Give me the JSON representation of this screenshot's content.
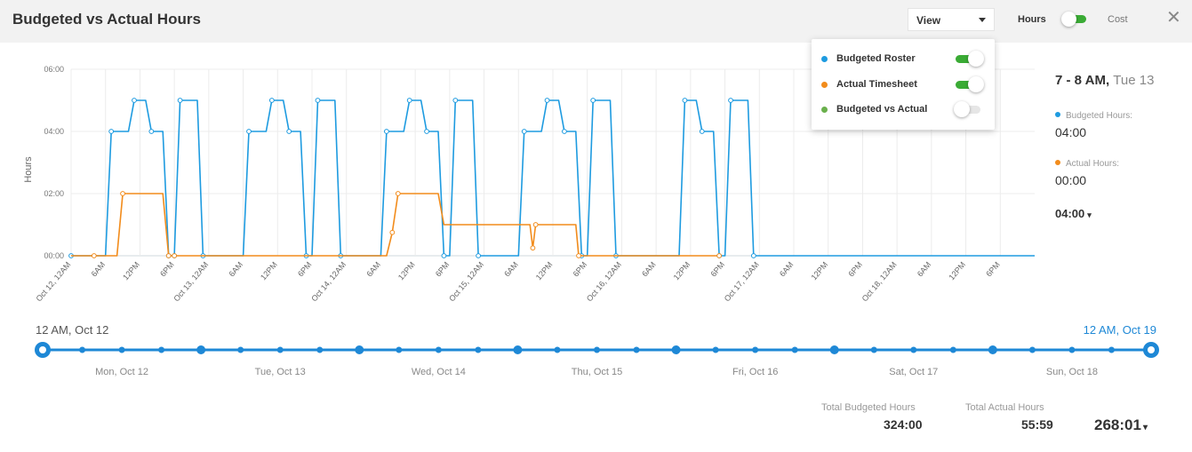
{
  "header": {
    "title": "Budgeted vs Actual Hours",
    "view_label": "View",
    "hours_label": "Hours",
    "cost_label": "Cost",
    "close_glyph": "✕"
  },
  "legend_popup": {
    "items": [
      {
        "label": "Budgeted Roster",
        "color": "#1e9be0",
        "enabled": true
      },
      {
        "label": "Actual Timesheet",
        "color": "#f28c1c",
        "enabled": true
      },
      {
        "label": "Budgeted vs Actual",
        "color": "#6ab04c",
        "enabled": false
      }
    ]
  },
  "side_panel": {
    "range": "7 - 8 AM,",
    "day": "Tue 13",
    "budgeted_label": "Budgeted Hours:",
    "budgeted_value": "04:00",
    "actual_label": "Actual Hours:",
    "actual_value": "00:00",
    "selected_value": "04:00",
    "caret": "▾"
  },
  "timeline": {
    "start_label": "12 AM, Oct 12",
    "end_label": "12 AM, Oct 19",
    "days": [
      "Mon, Oct 12",
      "Tue, Oct 13",
      "Wed, Oct 14",
      "Thu, Oct 15",
      "Fri, Oct 16",
      "Sat, Oct 17",
      "Sun, Oct 18"
    ],
    "color": "#1e88d6"
  },
  "totals": {
    "budgeted_label": "Total Budgeted Hours",
    "budgeted_value": "324:00",
    "actual_label": "Total Actual Hours",
    "actual_value": "55:59",
    "difference": "268:01",
    "caret": "▾"
  },
  "chart_data": {
    "type": "line",
    "ylabel": "Hours",
    "y_ticks": [
      "00:00",
      "02:00",
      "04:00",
      "06:00"
    ],
    "ylim": [
      0,
      6
    ],
    "x_unit": "hours since Oct 12, 12AM",
    "xlim": [
      0,
      168
    ],
    "x_tick_labels": [
      "Oct 12, 12AM",
      "6AM",
      "12PM",
      "6PM",
      "Oct 13, 12AM",
      "6AM",
      "12PM",
      "6PM",
      "Oct 14, 12AM",
      "6AM",
      "12PM",
      "6PM",
      "Oct 15, 12AM",
      "6AM",
      "12PM",
      "6PM",
      "Oct 16, 12AM",
      "6AM",
      "12PM",
      "6PM",
      "Oct 17, 12AM",
      "6AM",
      "12PM",
      "6PM",
      "Oct 18, 12AM",
      "6AM",
      "12PM",
      "6PM"
    ],
    "grid": true,
    "series": [
      {
        "name": "Budgeted Roster",
        "color": "#1e9be0",
        "points": [
          [
            0,
            0
          ],
          [
            6,
            0
          ],
          [
            7,
            4
          ],
          [
            10,
            4
          ],
          [
            11,
            5
          ],
          [
            13,
            5
          ],
          [
            14,
            4
          ],
          [
            16,
            4
          ],
          [
            17,
            0
          ],
          [
            18,
            0
          ],
          [
            19,
            5
          ],
          [
            22,
            5
          ],
          [
            23,
            0
          ],
          [
            30,
            0
          ],
          [
            31,
            4
          ],
          [
            34,
            4
          ],
          [
            35,
            5
          ],
          [
            37,
            5
          ],
          [
            38,
            4
          ],
          [
            40,
            4
          ],
          [
            41,
            0
          ],
          [
            42,
            0
          ],
          [
            43,
            5
          ],
          [
            46,
            5
          ],
          [
            47,
            0
          ],
          [
            54,
            0
          ],
          [
            55,
            4
          ],
          [
            58,
            4
          ],
          [
            59,
            5
          ],
          [
            61,
            5
          ],
          [
            62,
            4
          ],
          [
            64,
            4
          ],
          [
            65,
            0
          ],
          [
            66,
            0
          ],
          [
            67,
            5
          ],
          [
            70,
            5
          ],
          [
            71,
            0
          ],
          [
            78,
            0
          ],
          [
            79,
            4
          ],
          [
            82,
            4
          ],
          [
            83,
            5
          ],
          [
            85,
            5
          ],
          [
            86,
            4
          ],
          [
            88,
            4
          ],
          [
            89,
            0
          ],
          [
            90,
            0
          ],
          [
            91,
            5
          ],
          [
            94,
            5
          ],
          [
            95,
            0
          ],
          [
            106,
            0
          ],
          [
            107,
            5
          ],
          [
            109,
            5
          ],
          [
            110,
            4
          ],
          [
            112,
            4
          ],
          [
            113,
            0
          ],
          [
            114,
            0
          ],
          [
            115,
            5
          ],
          [
            118,
            5
          ],
          [
            119,
            0
          ],
          [
            168,
            0
          ]
        ],
        "markers": [
          [
            0,
            0
          ],
          [
            7,
            4
          ],
          [
            11,
            5
          ],
          [
            14,
            4
          ],
          [
            17,
            0
          ],
          [
            18,
            0
          ],
          [
            19,
            5
          ],
          [
            23,
            0
          ],
          [
            31,
            4
          ],
          [
            35,
            5
          ],
          [
            38,
            4
          ],
          [
            41,
            0
          ],
          [
            43,
            5
          ],
          [
            47,
            0
          ],
          [
            55,
            4
          ],
          [
            59,
            5
          ],
          [
            62,
            4
          ],
          [
            65,
            0
          ],
          [
            67,
            5
          ],
          [
            71,
            0
          ],
          [
            79,
            4
          ],
          [
            83,
            5
          ],
          [
            86,
            4
          ],
          [
            89,
            0
          ],
          [
            91,
            5
          ],
          [
            95,
            0
          ],
          [
            107,
            5
          ],
          [
            110,
            4
          ],
          [
            113,
            0
          ],
          [
            115,
            5
          ],
          [
            119,
            0
          ]
        ]
      },
      {
        "name": "Actual Timesheet",
        "color": "#f28c1c",
        "points": [
          [
            0,
            0
          ],
          [
            8,
            0
          ],
          [
            9,
            2
          ],
          [
            16,
            2
          ],
          [
            17,
            0
          ],
          [
            55,
            0
          ],
          [
            56,
            0.75
          ],
          [
            57,
            2
          ],
          [
            64,
            2
          ],
          [
            65,
            1
          ],
          [
            80,
            1
          ],
          [
            80.5,
            0.25
          ],
          [
            81,
            1
          ],
          [
            88,
            1
          ],
          [
            88.5,
            0
          ],
          [
            113,
            0
          ]
        ],
        "markers": [
          [
            4,
            0
          ],
          [
            9,
            2
          ],
          [
            17,
            0
          ],
          [
            18,
            0
          ],
          [
            56,
            0.75
          ],
          [
            57,
            2
          ],
          [
            80.5,
            0.25
          ],
          [
            81,
            1
          ],
          [
            88.5,
            0
          ],
          [
            113,
            0
          ]
        ]
      }
    ]
  }
}
